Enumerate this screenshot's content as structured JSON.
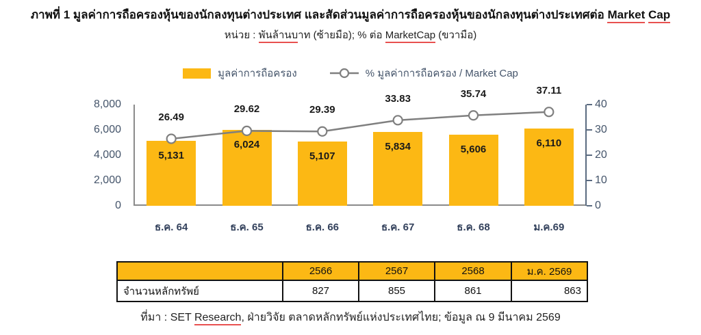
{
  "header": {
    "title_prefix": "ภาพที่ 1 มูลค่าการถือครองหุ้นของนักลงทุนต่างประเทศ และสัดส่วนมูลค่าการถือครองหุ้นของนักลงทุนต่างประเทศต่อ ",
    "title_word1": "Market",
    "title_space": " ",
    "title_word2": "Cap",
    "subtitle_label": "หน่วย : ",
    "subtitle_unit": "พันล้านบ",
    "subtitle_unit_tail": "าท",
    "subtitle_mid": " (ซ้ายมือ); % ต่อ ",
    "subtitle_marketcap": "MarketCap",
    "subtitle_tail": " (ขวามือ)"
  },
  "legend": {
    "bar_label": "มูลค่าการถือครอง",
    "line_label": "% มูลค่าการถือครอง / Market Cap"
  },
  "chart_data": {
    "type": "bar",
    "subtype": "bar-line-combo",
    "categories": [
      "ธ.ค. 64",
      "ธ.ค. 65",
      "ธ.ค. 66",
      "ธ.ค. 67",
      "ธ.ค. 68",
      "ม.ค.69"
    ],
    "series": [
      {
        "name": "มูลค่าการถือครอง",
        "type": "bar",
        "axis": "left",
        "values": [
          5131,
          6024,
          5107,
          5834,
          5606,
          6110
        ],
        "labels": [
          "5,131",
          "6,024",
          "5,107",
          "5,834",
          "5,606",
          "6,110"
        ],
        "color": "#FCB814"
      },
      {
        "name": "% มูลค่าการถือครอง / Market Cap",
        "type": "line",
        "axis": "right",
        "values": [
          26.49,
          29.62,
          29.39,
          33.83,
          35.74,
          37.11
        ],
        "labels": [
          "26.49",
          "29.62",
          "29.39",
          "33.83",
          "35.74",
          "37.11"
        ],
        "color": "#7F7F7F",
        "marker": "circle-open"
      }
    ],
    "left_axis": {
      "min": 0,
      "max": 8000,
      "ticks": [
        "8,000",
        "6,000",
        "4,000",
        "2,000",
        "0"
      ]
    },
    "right_axis": {
      "min": 0,
      "max": 40,
      "ticks": [
        "40",
        "30",
        "20",
        "10",
        "0"
      ]
    },
    "grid": false,
    "legend_position": "top",
    "title": "มูลค่าการถือครองหุ้นของนักลงทุนต่างประเทศ และสัดส่วนต่อ Market Cap",
    "xlabel": "",
    "ylabel_left": "พันล้านบาท",
    "ylabel_right": "% ต่อ MarketCap"
  },
  "table": {
    "header": [
      "",
      "2566",
      "2567",
      "2568",
      "ม.ค. 2569"
    ],
    "rows": [
      [
        "จำนวนหลักทรัพย์",
        "827",
        "855",
        "861",
        "863"
      ]
    ]
  },
  "footer": {
    "source_prefix": "ที่มา : SET ",
    "source_underlined": "Research",
    "source_suffix": ", ฝ่ายวิจัย ตลาดหลักทรัพย์แห่งประเทศไทย; ข้อมูล ณ 9 มีนาคม 2569"
  },
  "colors": {
    "bar": "#FCB814",
    "line": "#7F7F7F",
    "marker_fill": "#FFFFFF",
    "axis_label": "#44546A",
    "x_label": "#33415C",
    "axis_line": "#8A8A8A",
    "table_header_bg": "#FCB814",
    "table_border": "#111111",
    "spellcheck_underline": "#E8504F"
  }
}
